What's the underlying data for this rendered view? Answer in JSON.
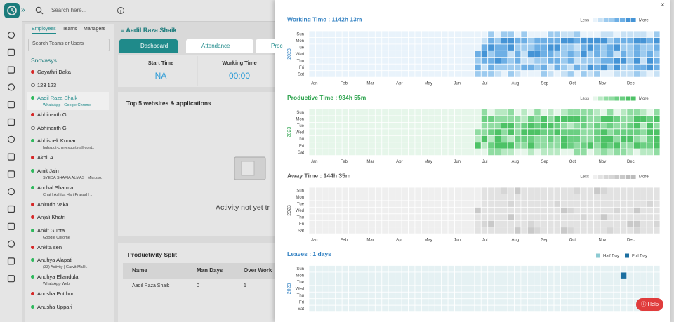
{
  "top_bar": {
    "search_placeholder": "Search here..."
  },
  "employee_panel": {
    "tabs": [
      "Employees",
      "Teams",
      "Managers"
    ],
    "search_placeholder": "Search Teams or Users",
    "group": "Snovasys",
    "employees": [
      {
        "name": "Gayathri Daka",
        "status": "offline"
      },
      {
        "name": "123 123",
        "status": "unknown"
      },
      {
        "name": "Aadil Raza Shaik",
        "status": "online",
        "activity": "WhatsApp - Google Chrome",
        "selected": true
      },
      {
        "name": "Abhinanth G",
        "status": "offline"
      },
      {
        "name": "Abhinanth G",
        "status": "unknown"
      },
      {
        "name": "Abhishek Kumar ..",
        "status": "online",
        "activity": "hubspot-crm-exports-all-cont.."
      },
      {
        "name": "Akhil A",
        "status": "offline"
      },
      {
        "name": "Amit Jain",
        "status": "online",
        "activity": "SYEDA SHAFIA ALMAS | Microso.."
      },
      {
        "name": "Anchal Sharma",
        "status": "online",
        "activity": "Chat | Ashika Hari Prasad | .."
      },
      {
        "name": "Anirudh Vaka",
        "status": "offline"
      },
      {
        "name": "Anjali Khatri",
        "status": "offline"
      },
      {
        "name": "Ankit Gupta",
        "status": "online",
        "activity": "Google Chrome"
      },
      {
        "name": "Ankita sen",
        "status": "offline"
      },
      {
        "name": "Anuhya Alapati",
        "status": "online",
        "activity": "(33) Activity | Garvit Malik.."
      },
      {
        "name": "Anuhya Ellandula",
        "status": "online",
        "activity": "WhatsApp Web"
      },
      {
        "name": "Anusha Potthuri",
        "status": "offline"
      },
      {
        "name": "Anusha Uppari",
        "status": "online"
      }
    ]
  },
  "detail": {
    "employee": "Aadil Raza Shaik",
    "tabs": [
      "Dashboard",
      "Attendance",
      "Proc"
    ],
    "stats": [
      {
        "label": "Start Time",
        "value": "NA"
      },
      {
        "label": "Working Time",
        "value": "00:00"
      }
    ],
    "websites_title": "Top 5 websites & applications",
    "empty_message": "Activity not yet tr",
    "split_title": "Productivity Split",
    "table": {
      "headers": [
        "Name",
        "Man Days",
        "Over Work"
      ],
      "rows": [
        [
          "Aadil Raza Shaik",
          "0",
          "1"
        ]
      ]
    }
  },
  "modal": {
    "year": "2023",
    "days": [
      "Sun",
      "Mon",
      "Tue",
      "Wed",
      "Thu",
      "Fri",
      "Sat"
    ],
    "months": [
      "Jan",
      "Feb",
      "Mar",
      "Apr",
      "May",
      "Jun",
      "Jul",
      "Aug",
      "Sep",
      "Oct",
      "Nov",
      "Dec"
    ],
    "less": "Less",
    "more": "More",
    "heatmaps": [
      {
        "title": "Working Time : 1142h 13m",
        "color": "#2f7fc1"
      },
      {
        "title": "Productive Time : 934h 55m",
        "color": "#2fa44f"
      },
      {
        "title": "Away Time :  144h 35m",
        "color": "#555555"
      },
      {
        "title": "Leaves : 1 days",
        "color": "#2f7fc1"
      }
    ],
    "leave_legend": [
      "Half Day",
      "Full Day"
    ]
  },
  "help_button": "Help"
}
